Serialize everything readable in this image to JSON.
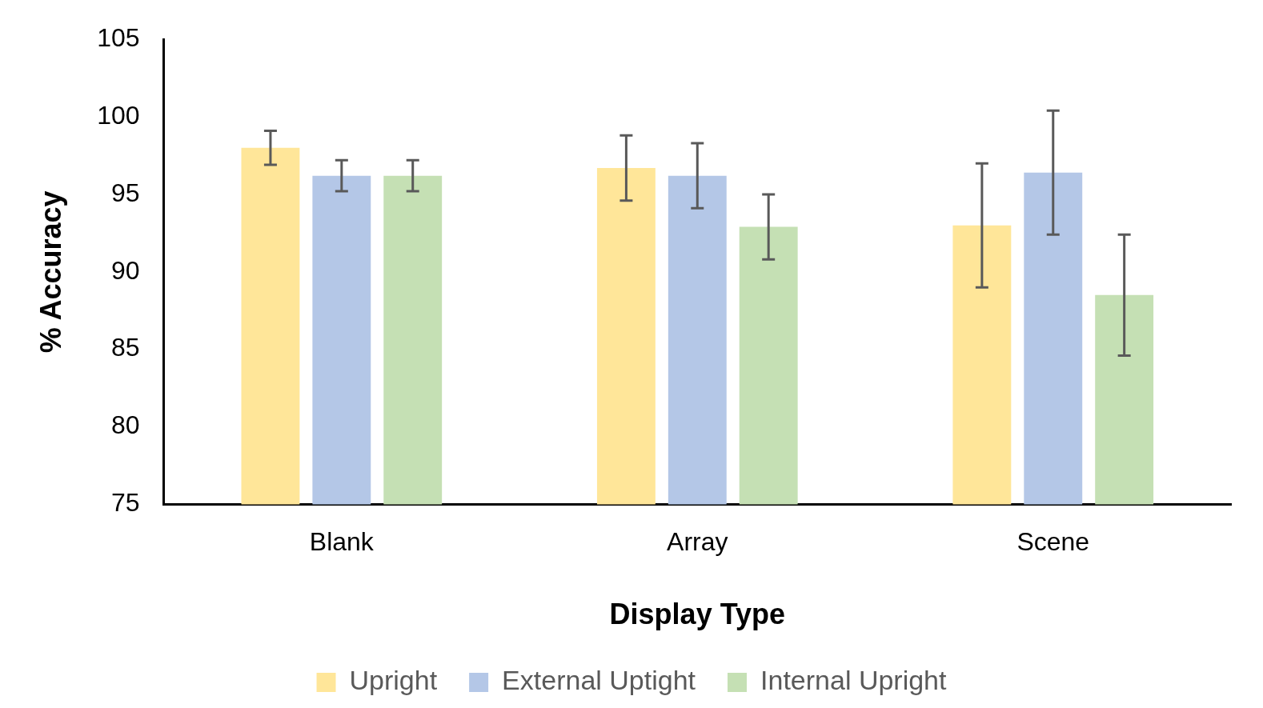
{
  "chart_data": {
    "type": "bar",
    "xlabel": "Display Type",
    "ylabel": "% Accuracy",
    "categories": [
      "Blank",
      "Array",
      "Scene"
    ],
    "series": [
      {
        "name": "Upright",
        "color": "#ffe699",
        "values": [
          98,
          96.7,
          93
        ],
        "errors": [
          1.1,
          2.1,
          4
        ]
      },
      {
        "name": "External Uptight",
        "color": "#b4c7e7",
        "values": [
          96.2,
          96.2,
          96.4
        ],
        "errors": [
          1,
          2.1,
          4
        ]
      },
      {
        "name": "Internal Upright",
        "color": "#c5e0b4",
        "values": [
          96.2,
          92.9,
          88.5
        ],
        "errors": [
          1,
          2.1,
          3.9
        ]
      }
    ],
    "ylim": [
      75,
      105
    ],
    "yticks": [
      75,
      80,
      85,
      90,
      95,
      100,
      105
    ],
    "grid": false,
    "legend": "bottom"
  }
}
